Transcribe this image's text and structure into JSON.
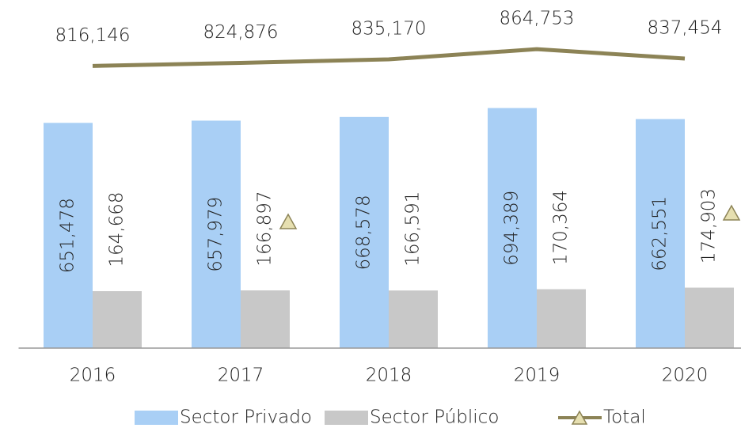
{
  "chart_data": {
    "type": "bar",
    "categories": [
      "2016",
      "2017",
      "2018",
      "2019",
      "2020"
    ],
    "series": [
      {
        "name": "Sector Privado",
        "color": "#a9cff5",
        "values": [
          651478,
          657979,
          668578,
          694389,
          662551
        ],
        "value_labels": [
          "651,478",
          "657,979",
          "668,578",
          "694,389",
          "662,551"
        ]
      },
      {
        "name": "Sector Público",
        "color": "#c8c8c8",
        "values": [
          164668,
          166897,
          166591,
          170364,
          174903
        ],
        "value_labels": [
          "164,668",
          "166,897",
          "166,591",
          "170,364",
          "174,903"
        ]
      },
      {
        "name": "Total",
        "color": "#8c8356",
        "type": "line",
        "values": [
          816146,
          824876,
          835170,
          864753,
          837454
        ],
        "value_labels": [
          "816,146",
          "824,876",
          "835,170",
          "864,753",
          "837,454"
        ]
      }
    ],
    "ylim": [
      0,
      1000000
    ]
  }
}
